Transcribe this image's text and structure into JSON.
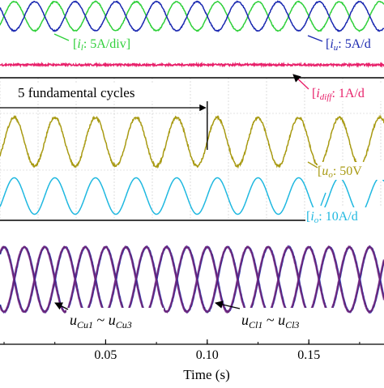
{
  "chart_data": [
    {
      "type": "line",
      "panel": "top",
      "xlim": [
        -0.002,
        0.187
      ],
      "grid": true,
      "series": [
        {
          "key": "i_l",
          "color": "#2fd03a",
          "frequency_hz": 50,
          "amplitude_div": 0.6,
          "phase_deg": 0,
          "noise": 0.02
        },
        {
          "key": "i_u",
          "color": "#1a28b0",
          "frequency_hz": 50,
          "amplitude_div": 0.6,
          "phase_deg": 180,
          "noise": 0.02
        },
        {
          "key": "i_diff",
          "color": "#e8206a",
          "frequency_hz": 0,
          "amplitude_div": 0.0,
          "noise": 0.12
        },
        {
          "key": "u_o",
          "color": "#a89a12",
          "frequency_hz": 50,
          "amplitude_div": 1.0,
          "phase_deg": 0,
          "noise": 0.05
        },
        {
          "key": "i_o",
          "color": "#1fb8e0",
          "frequency_hz": 50,
          "amplitude_div": 0.9,
          "phase_deg": 0,
          "noise": 0.0
        }
      ],
      "annotations": [
        {
          "key": "span",
          "text": "5 fundamental cycles",
          "x_start": -0.002,
          "x_end": 0.1
        },
        {
          "key": "i_l",
          "prefix": "[",
          "sym": "i",
          "sub": "l",
          "suffix": ": 5A/div]"
        },
        {
          "key": "i_u",
          "prefix": "[",
          "sym": "i",
          "sub": "u",
          "suffix": ": 5A/d"
        },
        {
          "key": "i_diff",
          "prefix": "[",
          "sym": "i",
          "sub": "diff",
          "suffix": ": 1A/d"
        },
        {
          "key": "u_o",
          "prefix": "[",
          "sym": "u",
          "sub": "o",
          "suffix": ": 50V"
        },
        {
          "key": "i_o",
          "prefix": "[",
          "sym": "i",
          "sub": "o",
          "suffix": ": 10A/d"
        }
      ]
    },
    {
      "type": "line",
      "panel": "bottom",
      "xlim": [
        -0.002,
        0.187
      ],
      "xlabel": "Time (s)",
      "xticks": [
        0.05,
        0.1,
        0.15
      ],
      "xtick_labels": [
        "0.05",
        "0.10",
        "0.15"
      ],
      "series": [
        {
          "key": "u_cu",
          "color": "#1a28b0",
          "frequency_hz": 50,
          "amplitude": 1,
          "phase_deg": 90
        },
        {
          "key": "u_cl",
          "color": "#1a28b0",
          "frequency_hz": 50,
          "amplitude": 1,
          "phase_deg": -90
        }
      ],
      "annotations": [
        {
          "key": "u_cu",
          "sym": "u",
          "sub1": "Cu1",
          "mid": " ~ ",
          "sub2": "Cu3",
          "x": 0.035
        },
        {
          "key": "u_cl",
          "sym": "u",
          "sub1": "Cl1",
          "mid": " ~ ",
          "sub2": "Cl3",
          "x": 0.104
        }
      ]
    }
  ]
}
